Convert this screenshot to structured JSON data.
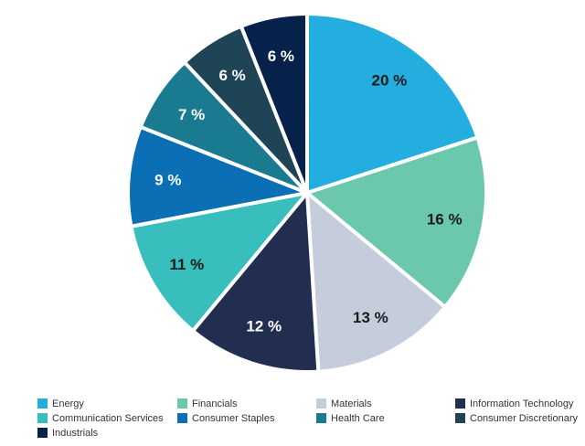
{
  "chart_data": {
    "type": "pie",
    "title": "",
    "legend_position": "bottom",
    "slices": [
      {
        "name": "Energy",
        "value": 20,
        "label": "20 %",
        "color": "#24aee0",
        "label_color": "#1a1a1a"
      },
      {
        "name": "Financials",
        "value": 16,
        "label": "16 %",
        "color": "#6bc8ad",
        "label_color": "#1a1a1a"
      },
      {
        "name": "Materials",
        "value": 13,
        "label": "13 %",
        "color": "#c5cddd",
        "label_color": "#1a1a1a"
      },
      {
        "name": "Information Technology",
        "value": 12,
        "label": "12 %",
        "color": "#222e50",
        "label_color": "#ffffff"
      },
      {
        "name": "Communication Services",
        "value": 11,
        "label": "11 %",
        "color": "#38bebd",
        "label_color": "#1a1a1a"
      },
      {
        "name": "Consumer Staples",
        "value": 9,
        "label": "9 %",
        "color": "#0a6fb5",
        "label_color": "#ffffff"
      },
      {
        "name": "Health Care",
        "value": 7,
        "label": "7 %",
        "color": "#1a7a90",
        "label_color": "#ffffff"
      },
      {
        "name": "Consumer Discretionary",
        "value": 6,
        "label": "6 %",
        "color": "#1e4456",
        "label_color": "#ffffff"
      },
      {
        "name": "Industrials",
        "value": 6,
        "label": "6 %",
        "color": "#06214a",
        "label_color": "#ffffff"
      }
    ]
  }
}
